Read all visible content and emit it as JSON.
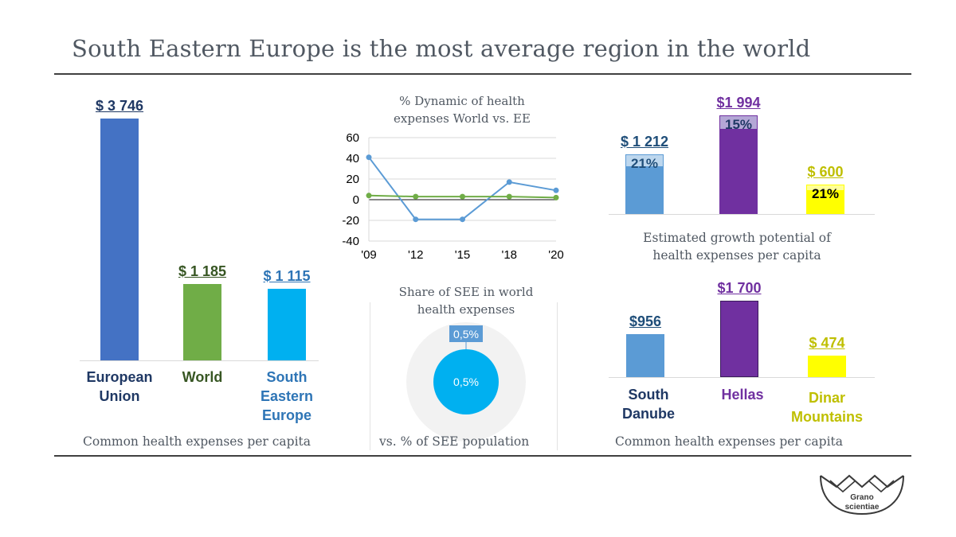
{
  "title": "South Eastern Europe is the most average region in the world",
  "colors": {
    "eu": "#4472C4",
    "world": "#70AD47",
    "see": "#00B0F0",
    "danube": "#5B9BD5",
    "hellas": "#7030A0",
    "dinar": "#FFFF00"
  },
  "logo": {
    "line1": "Grano",
    "line2": "scientiae"
  },
  "chart_data": [
    {
      "type": "bar",
      "caption": "Common health expenses per capita",
      "categories": [
        "European Union",
        "World",
        "South Eastern Europe"
      ],
      "values": [
        3746,
        1185,
        1115
      ],
      "value_labels": [
        "$ 3 746",
        "$ 1 185",
        "$ 1 115"
      ],
      "category_lines": [
        [
          "European",
          "Union"
        ],
        [
          "World"
        ],
        [
          "South",
          "Eastern",
          "Europe"
        ]
      ]
    },
    {
      "type": "line",
      "title_lines": [
        "% Dynamic of health",
        "expenses World vs. EE"
      ],
      "x": [
        "'09",
        "'12",
        "'15",
        "'18",
        "'20"
      ],
      "ylim": [
        -40,
        60
      ],
      "yticks": [
        60,
        40,
        20,
        0,
        -20,
        -40
      ],
      "series": [
        {
          "values": [
            41,
            -19,
            -19,
            17,
            9
          ],
          "color": "#5B9BD5"
        },
        {
          "values": [
            4,
            3,
            3,
            3,
            2
          ],
          "color": "#70AD47"
        }
      ]
    },
    {
      "type": "pie",
      "title_lines": [
        "Share of SEE in world",
        "health expenses"
      ],
      "caption": "vs. % of SEE population",
      "outer_label": "0,5%",
      "inner_label": "0,5%"
    },
    {
      "type": "bar",
      "caption_lines": [
        "Estimated growth potential of",
        "health expenses per capita"
      ],
      "categories": [
        "South Danube",
        "Hellas",
        "Dinar Mountains"
      ],
      "values": [
        1212,
        1994,
        600
      ],
      "base_values": [
        956,
        1700,
        474
      ],
      "value_labels": [
        "$ 1 212",
        "$1 994",
        "$ 600"
      ],
      "growth_labels": [
        "21%",
        "15%",
        "21%"
      ]
    },
    {
      "type": "bar",
      "caption": "Common health expenses per capita",
      "categories": [
        "South Danube",
        "Hellas",
        "Dinar Mountains"
      ],
      "values": [
        956,
        1700,
        474
      ],
      "value_labels": [
        "$956",
        "$1 700",
        "$ 474"
      ],
      "category_lines": [
        [
          "South",
          "Danube"
        ],
        [
          "Hellas"
        ],
        [
          "Dinar",
          "Mountains"
        ]
      ]
    }
  ]
}
